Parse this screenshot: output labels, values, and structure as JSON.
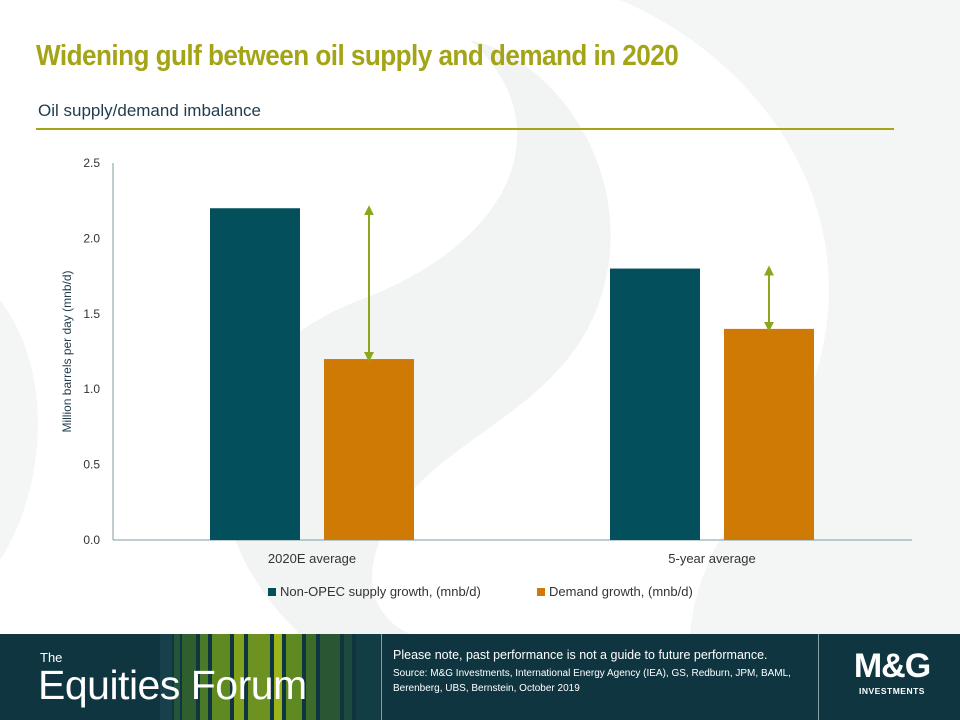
{
  "slide": {
    "title": "Widening gulf between oil supply and demand in 2020",
    "subtitle": "Oil supply/demand imbalance"
  },
  "footer": {
    "brand_prefix": "The",
    "brand_name": "Equities Forum",
    "disclaimer": "Please note, past performance  is not a guide to future performance.",
    "source": "Source: M&G Investments, International Energy Agency (IEA), GS, Redburn, JPM, BAML, Berenberg, UBS, Bernstein, October 2019",
    "logo_mark": "M&G",
    "logo_sub": "INVESTMENTS"
  },
  "colors": {
    "title": "#a4a417",
    "supply": "#034f5c",
    "demand": "#d07a06",
    "arrow": "#8ba81c",
    "axis": "#7f9ba2",
    "footer_bg": "#0f3640"
  },
  "chart_data": {
    "type": "bar",
    "categories": [
      "2020E average",
      "5-year average"
    ],
    "series": [
      {
        "name": "Non-OPEC supply growth, (mnb/d)",
        "values": [
          2.2,
          1.8
        ]
      },
      {
        "name": "Demand growth, (mnb/d)",
        "values": [
          1.2,
          1.4
        ]
      }
    ],
    "ylabel": "Million barrels per day (mnb/d)",
    "xlabel": "",
    "ylim": [
      0,
      2.5
    ],
    "yticks": [
      "0.0",
      "0.5",
      "1.0",
      "1.5",
      "2.0",
      "2.5"
    ],
    "grid": false,
    "legend": "bottom",
    "annotations": [
      {
        "type": "double-arrow",
        "category": "2020E average",
        "from": 1.2,
        "to": 2.2
      },
      {
        "type": "double-arrow",
        "category": "5-year average",
        "from": 1.4,
        "to": 1.8
      }
    ]
  }
}
